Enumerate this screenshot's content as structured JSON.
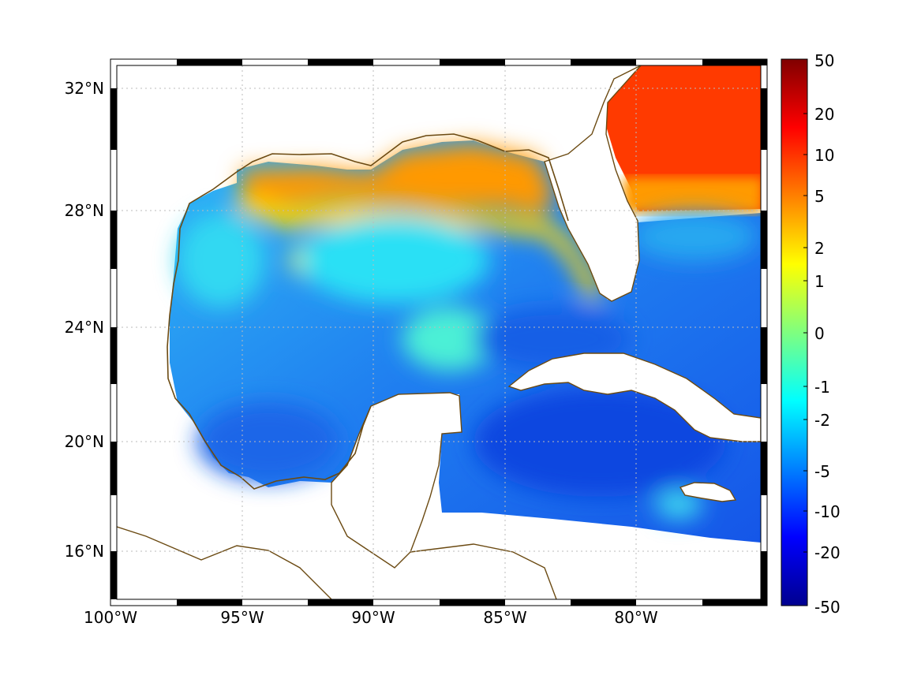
{
  "map": {
    "projection": "mercator",
    "lon_range": [
      -100,
      -75
    ],
    "lat_range": [
      14.2,
      33
    ],
    "lon_ticks": [
      {
        "value": -100,
        "label": "100°W"
      },
      {
        "value": -95,
        "label": "95°W"
      },
      {
        "value": -90,
        "label": "90°W"
      },
      {
        "value": -85,
        "label": "85°W"
      },
      {
        "value": -80,
        "label": "80°W"
      }
    ],
    "lat_ticks": [
      {
        "value": 16,
        "label": "16°N"
      },
      {
        "value": 20,
        "label": "20°N"
      },
      {
        "value": 24,
        "label": "24°N"
      },
      {
        "value": 28,
        "label": "28°N"
      },
      {
        "value": 32,
        "label": "32°N"
      }
    ],
    "grid": true,
    "coastline_color": "#6b4a12",
    "land_color": "#ffffff",
    "frame_pattern": "alternating black/white border"
  },
  "colorbar": {
    "placement": "right",
    "colormap": "jet",
    "ticks": [
      "50",
      "20",
      "10",
      "5",
      "2",
      "1",
      "0",
      "-1",
      "-2",
      "-5",
      "-10",
      "-20",
      "-50"
    ]
  },
  "field_regions": [
    {
      "region": "Atlantic off Georgia/Carolinas",
      "level": "10 to 20"
    },
    {
      "region": "Northern Gulf shelf (Louisiana to Florida panhandle)",
      "level": "2 to 5"
    },
    {
      "region": "Texas/Louisiana coast",
      "level": "2 to 5"
    },
    {
      "region": "Central Gulf of Mexico",
      "level": "-1 to -2"
    },
    {
      "region": "Southwestern Gulf",
      "level": "-2 to -5"
    },
    {
      "region": "Caribbean south of Cuba",
      "level": "-5 to -10"
    },
    {
      "region": "Straits of Florida / Bahamas",
      "level": "-2 to -5"
    }
  ]
}
